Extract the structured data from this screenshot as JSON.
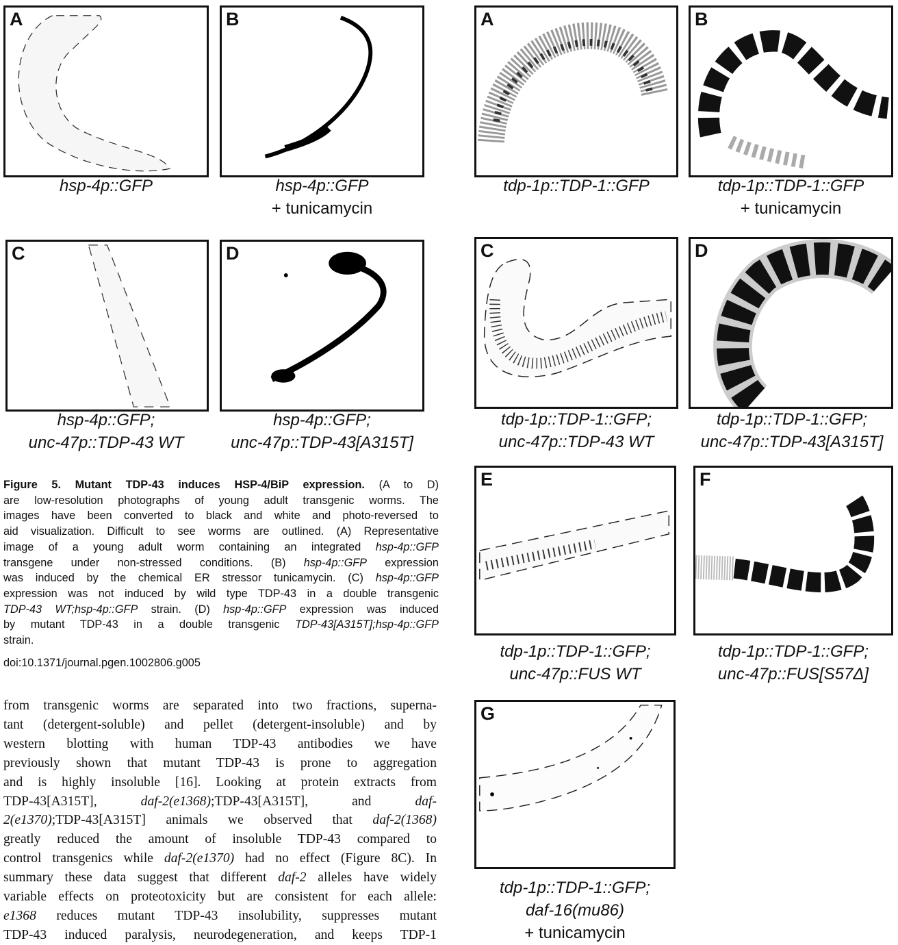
{
  "left_figure": {
    "panels": [
      {
        "label": "A",
        "caption": [
          [
            {
              "text": "hsp-4p::GFP",
              "style": "italic"
            }
          ]
        ]
      },
      {
        "label": "B",
        "caption": [
          [
            {
              "text": "hsp-4p::GFP",
              "style": "italic"
            }
          ],
          [
            "+ tunicamycin"
          ]
        ]
      },
      {
        "label": "C",
        "caption": [
          [
            {
              "text": "hsp-4p::GFP;",
              "style": "italic"
            }
          ],
          [
            {
              "text": "unc-47p::TDP-43 WT",
              "style": "italic"
            }
          ]
        ]
      },
      {
        "label": "D",
        "caption": [
          [
            {
              "text": "hsp-4p::GFP;",
              "style": "italic"
            }
          ],
          [
            {
              "text": "unc-47p::TDP-43[A315T]",
              "style": "italic"
            }
          ]
        ]
      }
    ]
  },
  "figure_caption": {
    "lines": [
      [
        {
          "text": "Figure 5. Mutant TDP-43 induces HSP-4/BiP expression.",
          "style": "bold"
        },
        " (A to D)"
      ],
      [
        "are low-resolution photographs of young adult transgenic worms. The"
      ],
      [
        "images have been converted to black and white and photo-reversed to"
      ],
      [
        "aid visualization. Difficult to see worms are outlined. (A) Representative"
      ],
      [
        "image of a young adult worm containing an integrated ",
        {
          "text": "hsp-4p::GFP",
          "style": "italic"
        }
      ],
      [
        "transgene under non-stressed conditions. (B) ",
        {
          "text": "hsp-4p::GFP",
          "style": "italic"
        },
        " expression"
      ],
      [
        "was induced by the chemical ER stressor tunicamycin. (C) ",
        {
          "text": "hsp-4p::GFP",
          "style": "italic"
        }
      ],
      [
        "expression was not induced by wild type TDP-43 in a double transgenic"
      ],
      [
        {
          "text": "TDP-43 WT;hsp-4p::GFP",
          "style": "italic"
        },
        " strain. (D) ",
        {
          "text": "hsp-4p::GFP",
          "style": "italic"
        },
        " expression was induced"
      ],
      [
        "by mutant TDP-43 in a double transgenic ",
        {
          "text": "TDP-43[A315T];hsp-4p::GFP",
          "style": "italic"
        }
      ],
      [
        "strain."
      ]
    ],
    "doi": "doi:10.1371/journal.pgen.1002806.g005"
  },
  "body_text": {
    "lines": [
      [
        "from transgenic worms are separated into two fractions, superna-"
      ],
      [
        "tant (detergent-soluble) and pellet (detergent-insoluble) and by"
      ],
      [
        "western blotting with human TDP-43 antibodies we have"
      ],
      [
        "previously shown that mutant TDP-43 is prone to aggregation"
      ],
      [
        "and is highly insoluble [16]. Looking at protein extracts from"
      ],
      [
        "TDP-43[A315T], ",
        {
          "text": "daf-2(e1368)",
          "style": "italic"
        },
        ";TDP-43[A315T], and ",
        {
          "text": "daf-",
          "style": "italic"
        }
      ],
      [
        {
          "text": "2(e1370)",
          "style": "italic"
        },
        ";TDP-43[A315T] animals we observed that ",
        {
          "text": "daf-2(1368)",
          "style": "italic"
        }
      ],
      [
        "greatly reduced the amount of insoluble TDP-43 compared to"
      ],
      [
        "control transgenics while ",
        {
          "text": "daf-2(e1370)",
          "style": "italic"
        },
        " had no effect (Figure 8C). In"
      ],
      [
        "summary these data suggest that different ",
        {
          "text": "daf-2",
          "style": "italic"
        },
        " alleles have widely"
      ],
      [
        "variable effects on proteotoxicity but are consistent for each allele:"
      ],
      [
        {
          "text": "e1368",
          "style": "italic"
        },
        " reduces mutant TDP-43 insolubility, suppresses mutant"
      ],
      [
        "TDP-43 induced paralysis, neurodegeneration, and keeps TDP-1"
      ]
    ]
  },
  "right_figure": {
    "panels": [
      {
        "label": "A",
        "caption": [
          [
            {
              "text": "tdp-1p::TDP-1::GFP",
              "style": "italic"
            }
          ]
        ]
      },
      {
        "label": "B",
        "caption": [
          [
            {
              "text": "tdp-1p::TDP-1::GFP",
              "style": "italic"
            }
          ],
          [
            "+ tunicamycin"
          ]
        ]
      },
      {
        "label": "C",
        "caption": [
          [
            {
              "text": "tdp-1p::TDP-1::GFP;",
              "style": "italic"
            }
          ],
          [
            {
              "text": "unc-47p::TDP-43 WT",
              "style": "italic"
            }
          ]
        ]
      },
      {
        "label": "D",
        "caption": [
          [
            {
              "text": "tdp-1p::TDP-1::GFP;",
              "style": "italic"
            }
          ],
          [
            {
              "text": "unc-47p::TDP-43[A315T]",
              "style": "italic"
            }
          ]
        ]
      },
      {
        "label": "E",
        "caption": [
          [
            {
              "text": "tdp-1p::TDP-1::GFP;",
              "style": "italic"
            }
          ],
          [
            {
              "text": "unc-47p::FUS WT",
              "style": "italic"
            }
          ]
        ]
      },
      {
        "label": "F",
        "caption": [
          [
            {
              "text": "tdp-1p::TDP-1::GFP;",
              "style": "italic"
            }
          ],
          [
            {
              "text": "unc-47p::FUS[S57Δ]",
              "style": "italic"
            }
          ]
        ]
      },
      {
        "label": "G",
        "caption": [
          [
            {
              "text": "tdp-1p::TDP-1::GFP;",
              "style": "italic"
            }
          ],
          [
            {
              "text": "daf-16(mu86)",
              "style": "italic"
            }
          ],
          [
            "+ tunicamycin"
          ]
        ]
      }
    ]
  }
}
